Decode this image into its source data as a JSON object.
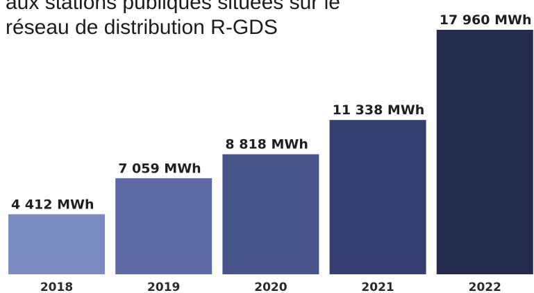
{
  "title_lines": [
    "aux stations publiques situées sur le",
    "réseau de distribution R-GDS"
  ],
  "chart_data": {
    "type": "bar",
    "title": "aux stations publiques situées sur le réseau de distribution R-GDS",
    "categories": [
      "2018",
      "2019",
      "2020",
      "2021",
      "2022"
    ],
    "values": [
      4412,
      7059,
      8818,
      11338,
      17960
    ],
    "value_labels": [
      "4 412 MWh",
      "7 059 MWh",
      "8 818 MWh",
      "11 338 MWh",
      "17 960 MWh"
    ],
    "bar_colors": [
      "#7a8cc0",
      "#5d6aa6",
      "#46548a",
      "#343f72",
      "#252b4f"
    ],
    "ylim": [
      0,
      17960
    ],
    "grid": false,
    "legend": "none"
  }
}
